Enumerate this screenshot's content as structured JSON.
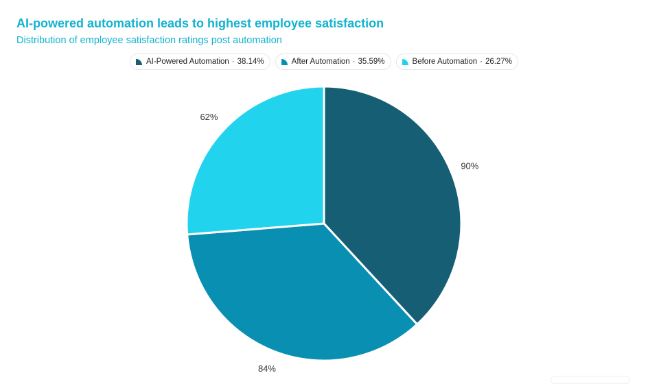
{
  "title": "AI-powered automation leads to highest employee satisfaction",
  "subtitle": "Distribution of employee satisfaction ratings post automation",
  "legend": [
    {
      "name": "AI-Powered Automation",
      "share": "38.14%",
      "color": "#165e73"
    },
    {
      "name": "After Automation",
      "share": "35.59%",
      "color": "#088fb2"
    },
    {
      "name": "Before Automation",
      "share": "26.27%",
      "color": "#22d3ee"
    }
  ],
  "chart_data": {
    "type": "pie",
    "categories": [
      "AI-Powered Automation",
      "After Automation",
      "Before Automation"
    ],
    "values": [
      90,
      84,
      62
    ],
    "data_labels": [
      "90%",
      "84%",
      "62%"
    ],
    "shares": [
      "38.14%",
      "35.59%",
      "26.27%"
    ],
    "colors": [
      "#165e73",
      "#088fb2",
      "#22d3ee"
    ],
    "start_angle_deg": 0,
    "direction": "clockwise",
    "legend_position": "top-center"
  }
}
